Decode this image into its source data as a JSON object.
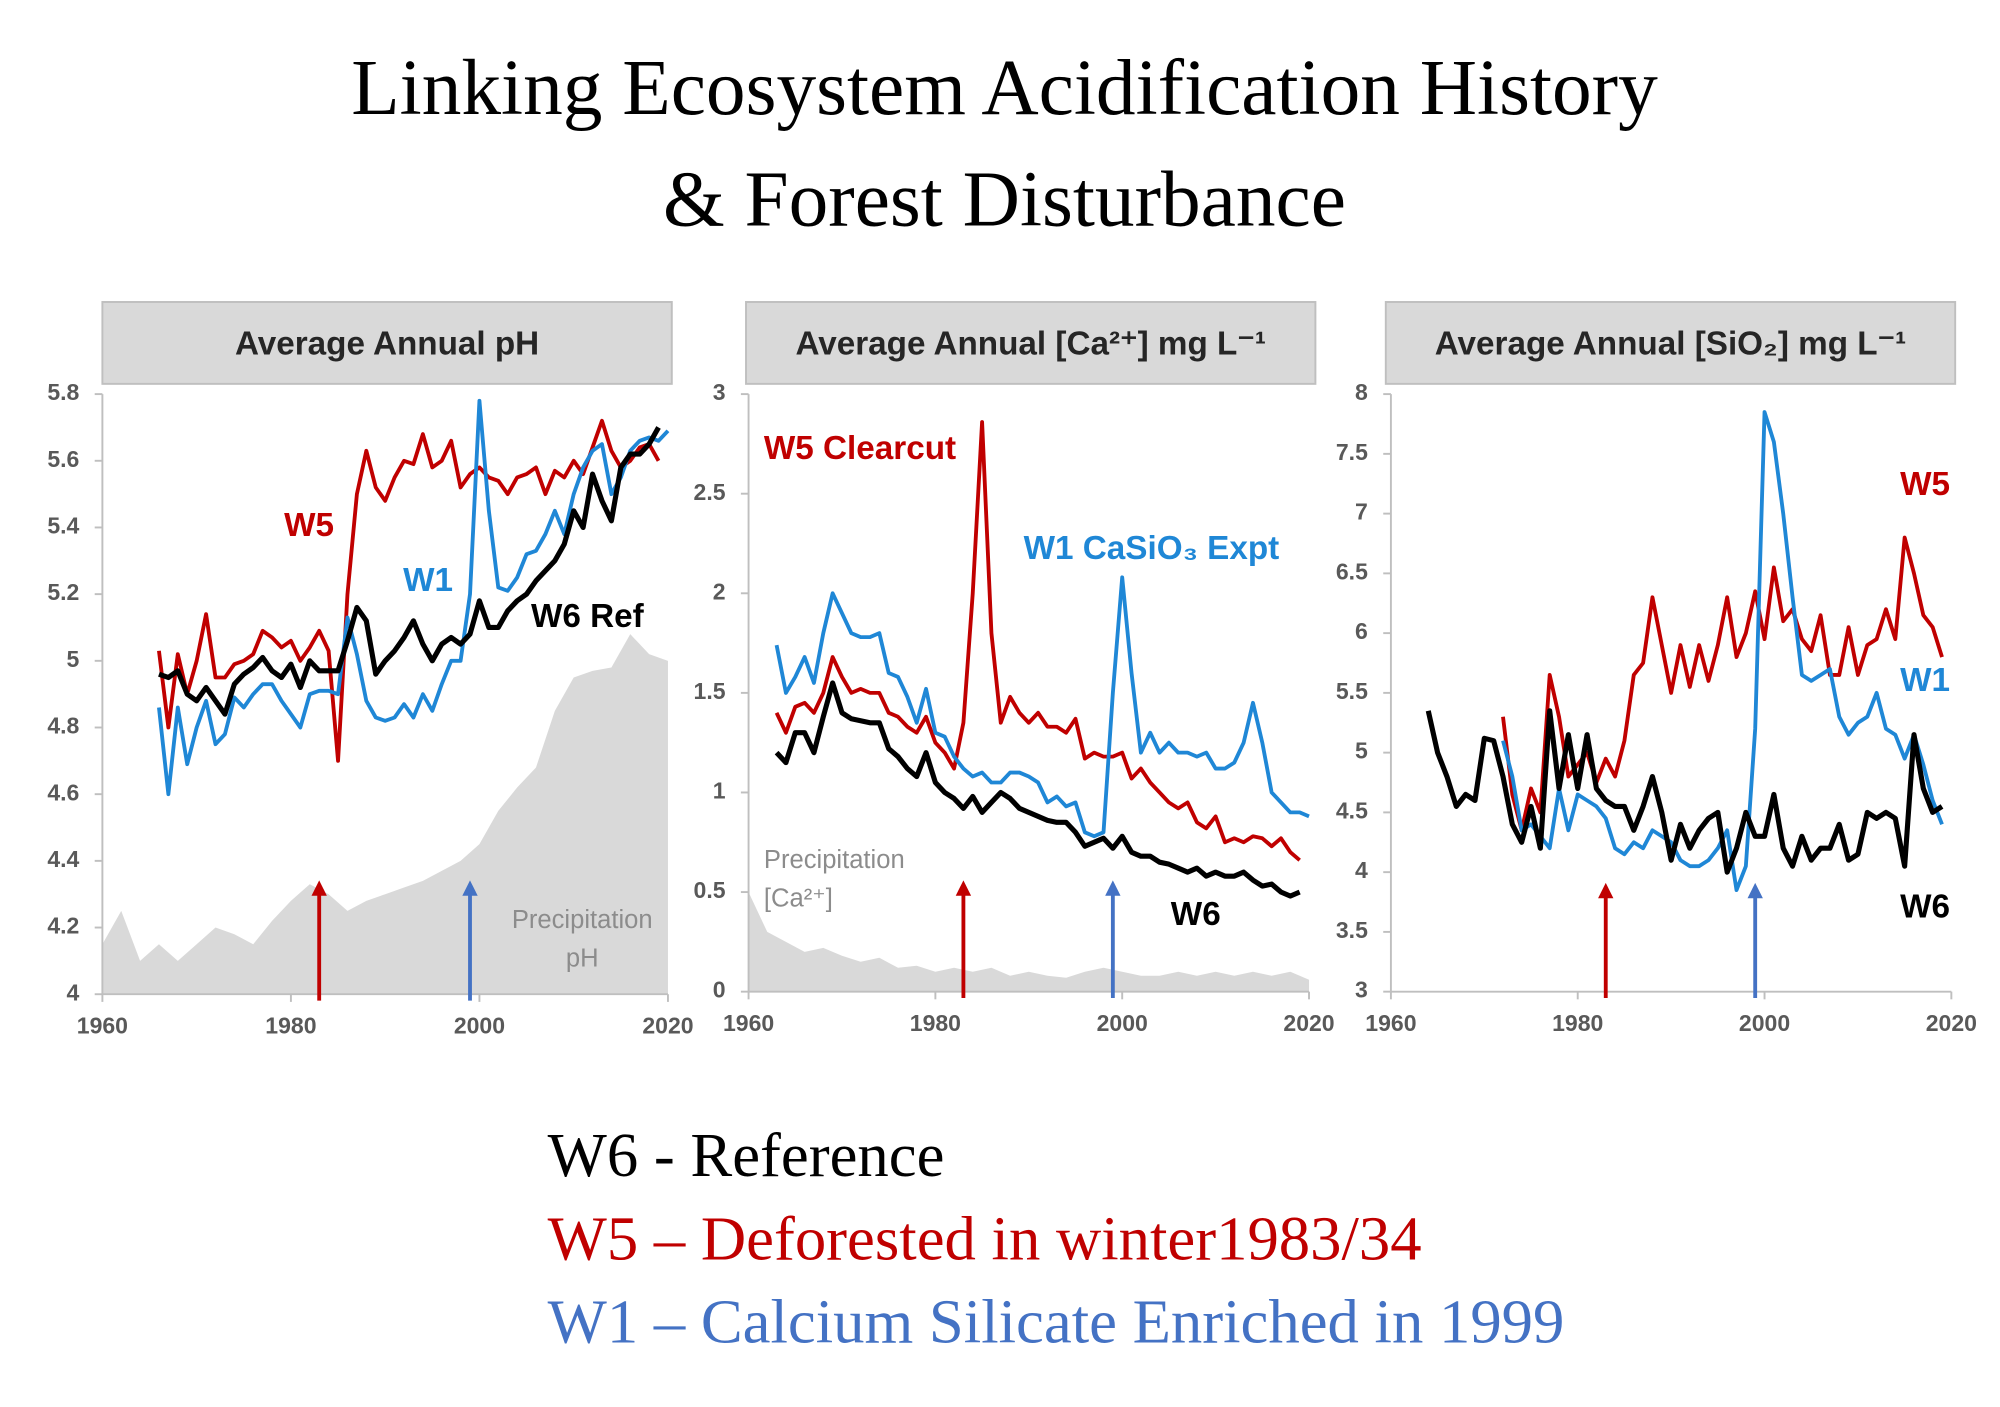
{
  "title": [
    "Linking Ecosystem Acidification History",
    "& Forest Disturbance"
  ],
  "notes": [
    {
      "text": "W6 - Reference",
      "color": "#000000"
    },
    {
      "text": "W5 – Deforested in winter1983/34",
      "color": "#c00000"
    },
    {
      "text": "W1 – Calcium Silicate Enriched in 1999",
      "color": "#4472c4"
    }
  ],
  "chart_data": [
    {
      "type": "line",
      "title": "Average Annual pH",
      "xlim": [
        1960,
        2020
      ],
      "xticks": [
        1960,
        1980,
        2000,
        2020
      ],
      "ylim": [
        4,
        5.8
      ],
      "yticks": [
        4,
        4.2,
        4.4,
        4.6,
        4.8,
        5,
        5.2,
        5.4,
        5.6,
        5.8
      ],
      "x": [
        1966,
        1967,
        1968,
        1969,
        1970,
        1971,
        1972,
        1973,
        1974,
        1975,
        1976,
        1977,
        1978,
        1979,
        1980,
        1981,
        1982,
        1983,
        1984,
        1985,
        1986,
        1987,
        1988,
        1989,
        1990,
        1991,
        1992,
        1993,
        1994,
        1995,
        1996,
        1997,
        1998,
        1999,
        2000,
        2001,
        2002,
        2003,
        2004,
        2005,
        2006,
        2007,
        2008,
        2009,
        2010,
        2011,
        2012,
        2013,
        2014,
        2015,
        2016,
        2017,
        2018,
        2019,
        2020
      ],
      "series": [
        {
          "name": "W5",
          "color": "#c00000",
          "values": [
            5.03,
            4.8,
            5.02,
            4.9,
            5.0,
            5.14,
            4.95,
            4.95,
            4.99,
            5.0,
            5.02,
            5.09,
            5.07,
            5.04,
            5.06,
            5.0,
            5.04,
            5.09,
            5.03,
            4.7,
            5.2,
            5.5,
            5.63,
            5.52,
            5.48,
            5.55,
            5.6,
            5.59,
            5.68,
            5.58,
            5.6,
            5.66,
            5.52,
            5.56,
            5.58,
            5.55,
            5.54,
            5.5,
            5.55,
            5.56,
            5.58,
            5.5,
            5.57,
            5.55,
            5.6,
            5.56,
            5.64,
            5.72,
            5.63,
            5.58,
            5.6,
            5.64,
            5.65,
            5.6,
            null
          ]
        },
        {
          "name": "W1",
          "color": "#1f87d6",
          "values": [
            4.86,
            4.6,
            4.86,
            4.69,
            4.8,
            4.88,
            4.75,
            4.78,
            4.89,
            4.86,
            4.9,
            4.93,
            4.93,
            4.88,
            4.84,
            4.8,
            4.9,
            4.91,
            4.91,
            4.9,
            5.13,
            5.02,
            4.88,
            4.83,
            4.82,
            4.83,
            4.87,
            4.83,
            4.9,
            4.85,
            4.93,
            5.0,
            5.0,
            5.2,
            5.78,
            5.45,
            5.22,
            5.21,
            5.25,
            5.32,
            5.33,
            5.38,
            5.45,
            5.38,
            5.5,
            5.58,
            5.63,
            5.65,
            5.5,
            5.55,
            5.63,
            5.66,
            5.67,
            5.66,
            5.69
          ]
        },
        {
          "name": "W6 Ref",
          "color": "#000000",
          "values": [
            4.96,
            4.95,
            4.97,
            4.9,
            4.88,
            4.92,
            4.88,
            4.84,
            4.93,
            4.96,
            4.98,
            5.01,
            4.97,
            4.95,
            4.99,
            4.92,
            5.0,
            4.97,
            4.97,
            4.97,
            5.06,
            5.16,
            5.12,
            4.96,
            5.0,
            5.03,
            5.07,
            5.12,
            5.05,
            5.0,
            5.05,
            5.07,
            5.05,
            5.08,
            5.18,
            5.1,
            5.1,
            5.15,
            5.18,
            5.2,
            5.24,
            5.27,
            5.3,
            5.35,
            5.45,
            5.4,
            5.56,
            5.48,
            5.42,
            5.58,
            5.62,
            5.62,
            5.65,
            5.7,
            null
          ]
        }
      ],
      "precipitation": {
        "name": [
          "Precipitation",
          "pH"
        ],
        "color": "#d9d9d9",
        "x": [
          1960,
          1962,
          1964,
          1966,
          1968,
          1970,
          1972,
          1974,
          1976,
          1978,
          1980,
          1982,
          1984,
          1986,
          1988,
          1990,
          1992,
          1994,
          1996,
          1998,
          2000,
          2002,
          2004,
          2006,
          2008,
          2010,
          2012,
          2014,
          2016,
          2018,
          2020
        ],
        "values": [
          4.15,
          4.25,
          4.1,
          4.15,
          4.1,
          4.15,
          4.2,
          4.18,
          4.15,
          4.22,
          4.28,
          4.33,
          4.3,
          4.25,
          4.28,
          4.3,
          4.32,
          4.34,
          4.37,
          4.4,
          4.45,
          4.55,
          4.62,
          4.68,
          4.85,
          4.95,
          4.97,
          4.98,
          5.08,
          5.02,
          5.0
        ]
      },
      "arrows": [
        {
          "x": 1983,
          "color": "#c00000"
        },
        {
          "x": 1999,
          "color": "#4472c4"
        }
      ]
    },
    {
      "type": "line",
      "title": "Average Annual [Ca²⁺] mg L⁻¹",
      "xlim": [
        1960,
        2020
      ],
      "xticks": [
        1960,
        1980,
        2000,
        2020
      ],
      "ylim": [
        0,
        3
      ],
      "yticks": [
        0,
        0.5,
        1,
        1.5,
        2,
        2.5,
        3
      ],
      "x": [
        1963,
        1964,
        1965,
        1966,
        1967,
        1968,
        1969,
        1970,
        1971,
        1972,
        1973,
        1974,
        1975,
        1976,
        1977,
        1978,
        1979,
        1980,
        1981,
        1982,
        1983,
        1984,
        1985,
        1986,
        1987,
        1988,
        1989,
        1990,
        1991,
        1992,
        1993,
        1994,
        1995,
        1996,
        1997,
        1998,
        1999,
        2000,
        2001,
        2002,
        2003,
        2004,
        2005,
        2006,
        2007,
        2008,
        2009,
        2010,
        2011,
        2012,
        2013,
        2014,
        2015,
        2016,
        2017,
        2018,
        2019,
        2020
      ],
      "series": [
        {
          "name": "W5 Clearcut",
          "color": "#c00000",
          "values": [
            1.4,
            1.3,
            1.43,
            1.45,
            1.4,
            1.5,
            1.68,
            1.58,
            1.5,
            1.52,
            1.5,
            1.5,
            1.4,
            1.38,
            1.33,
            1.3,
            1.38,
            1.25,
            1.2,
            1.12,
            1.35,
            2.0,
            2.86,
            1.8,
            1.35,
            1.48,
            1.4,
            1.35,
            1.4,
            1.33,
            1.33,
            1.3,
            1.37,
            1.17,
            1.2,
            1.18,
            1.18,
            1.2,
            1.07,
            1.12,
            1.05,
            1.0,
            0.95,
            0.92,
            0.95,
            0.85,
            0.82,
            0.88,
            0.75,
            0.77,
            0.75,
            0.78,
            0.77,
            0.73,
            0.77,
            0.7,
            0.66,
            null
          ]
        },
        {
          "name": "W1 CaSiO₃ Expt",
          "color": "#1f87d6",
          "values": [
            1.74,
            1.5,
            1.58,
            1.68,
            1.55,
            1.8,
            2.0,
            1.9,
            1.8,
            1.78,
            1.78,
            1.8,
            1.6,
            1.58,
            1.48,
            1.35,
            1.52,
            1.3,
            1.28,
            1.18,
            1.12,
            1.08,
            1.1,
            1.05,
            1.05,
            1.1,
            1.1,
            1.08,
            1.05,
            0.95,
            0.98,
            0.93,
            0.95,
            0.8,
            0.78,
            0.8,
            1.5,
            2.08,
            1.6,
            1.2,
            1.3,
            1.2,
            1.25,
            1.2,
            1.2,
            1.18,
            1.2,
            1.12,
            1.12,
            1.15,
            1.25,
            1.45,
            1.25,
            1.0,
            0.95,
            0.9,
            0.9,
            0.88
          ]
        },
        {
          "name": "W6",
          "color": "#000000",
          "values": [
            1.2,
            1.15,
            1.3,
            1.3,
            1.2,
            1.38,
            1.55,
            1.4,
            1.37,
            1.36,
            1.35,
            1.35,
            1.22,
            1.18,
            1.12,
            1.08,
            1.2,
            1.05,
            1.0,
            0.97,
            0.92,
            0.98,
            0.9,
            0.95,
            1.0,
            0.97,
            0.92,
            0.9,
            0.88,
            0.86,
            0.85,
            0.85,
            0.8,
            0.73,
            0.75,
            0.77,
            0.72,
            0.78,
            0.7,
            0.68,
            0.68,
            0.65,
            0.64,
            0.62,
            0.6,
            0.62,
            0.58,
            0.6,
            0.58,
            0.58,
            0.6,
            0.56,
            0.53,
            0.54,
            0.5,
            0.48,
            0.5,
            null
          ]
        }
      ],
      "precipitation": {
        "name": [
          "Precipitation",
          "[Ca²⁺]"
        ],
        "color": "#d9d9d9",
        "x": [
          1960,
          1962,
          1964,
          1966,
          1968,
          1970,
          1972,
          1974,
          1976,
          1978,
          1980,
          1982,
          1984,
          1986,
          1988,
          1990,
          1992,
          1994,
          1996,
          1998,
          2000,
          2002,
          2004,
          2006,
          2008,
          2010,
          2012,
          2014,
          2016,
          2018,
          2020
        ],
        "values": [
          0.5,
          0.3,
          0.25,
          0.2,
          0.22,
          0.18,
          0.15,
          0.17,
          0.12,
          0.13,
          0.1,
          0.12,
          0.1,
          0.12,
          0.08,
          0.1,
          0.08,
          0.07,
          0.1,
          0.12,
          0.1,
          0.08,
          0.08,
          0.1,
          0.08,
          0.1,
          0.08,
          0.1,
          0.08,
          0.1,
          0.06
        ]
      },
      "arrows": [
        {
          "x": 1983,
          "color": "#c00000"
        },
        {
          "x": 1999,
          "color": "#4472c4"
        }
      ]
    },
    {
      "type": "line",
      "title": "Average Annual [SiO₂] mg L⁻¹",
      "xlim": [
        1960,
        2020
      ],
      "xticks": [
        1960,
        1980,
        2000,
        2020
      ],
      "ylim": [
        3,
        8
      ],
      "yticks": [
        3,
        3.5,
        4,
        4.5,
        5,
        5.5,
        6,
        6.5,
        7,
        7.5,
        8
      ],
      "x": [
        1964,
        1965,
        1966,
        1967,
        1968,
        1969,
        1970,
        1971,
        1972,
        1973,
        1974,
        1975,
        1976,
        1977,
        1978,
        1979,
        1980,
        1981,
        1982,
        1983,
        1984,
        1985,
        1986,
        1987,
        1988,
        1989,
        1990,
        1991,
        1992,
        1993,
        1994,
        1995,
        1996,
        1997,
        1998,
        1999,
        2000,
        2001,
        2002,
        2003,
        2004,
        2005,
        2006,
        2007,
        2008,
        2009,
        2010,
        2011,
        2012,
        2013,
        2014,
        2015,
        2016,
        2017,
        2018,
        2019,
        2020
      ],
      "series": [
        {
          "name": "W5",
          "color": "#c00000",
          "values": [
            null,
            null,
            null,
            null,
            null,
            null,
            null,
            null,
            5.3,
            4.65,
            4.35,
            4.7,
            4.5,
            5.65,
            5.3,
            4.8,
            4.9,
            5.0,
            4.75,
            4.95,
            4.8,
            5.1,
            5.65,
            5.75,
            6.3,
            5.9,
            5.5,
            5.9,
            5.55,
            5.9,
            5.6,
            5.9,
            6.3,
            5.8,
            6.0,
            6.35,
            5.95,
            6.55,
            6.1,
            6.2,
            5.95,
            5.85,
            6.15,
            5.65,
            5.65,
            6.05,
            5.65,
            5.9,
            5.95,
            6.2,
            5.95,
            6.8,
            6.5,
            6.15,
            6.05,
            5.8,
            null
          ]
        },
        {
          "name": "W1",
          "color": "#1f87d6",
          "values": [
            null,
            null,
            null,
            null,
            null,
            null,
            null,
            null,
            5.1,
            4.8,
            4.35,
            4.4,
            4.3,
            4.2,
            4.7,
            4.35,
            4.65,
            4.6,
            4.55,
            4.45,
            4.2,
            4.15,
            4.25,
            4.2,
            4.35,
            4.3,
            4.25,
            4.1,
            4.05,
            4.05,
            4.1,
            4.2,
            4.35,
            3.85,
            4.05,
            5.2,
            7.85,
            7.6,
            7.0,
            6.3,
            5.65,
            5.6,
            5.65,
            5.7,
            5.3,
            5.15,
            5.25,
            5.3,
            5.5,
            5.2,
            5.15,
            4.95,
            5.15,
            4.9,
            4.6,
            4.4,
            null
          ]
        },
        {
          "name": "W6",
          "color": "#000000",
          "values": [
            5.35,
            5.0,
            4.8,
            4.55,
            4.65,
            4.6,
            5.12,
            5.1,
            4.8,
            4.4,
            4.25,
            4.55,
            4.2,
            5.35,
            4.7,
            5.15,
            4.7,
            5.15,
            4.7,
            4.6,
            4.55,
            4.55,
            4.35,
            4.55,
            4.8,
            4.5,
            4.1,
            4.4,
            4.2,
            4.35,
            4.45,
            4.5,
            4.0,
            4.2,
            4.5,
            4.3,
            4.3,
            4.65,
            4.2,
            4.05,
            4.3,
            4.1,
            4.2,
            4.2,
            4.4,
            4.1,
            4.15,
            4.5,
            4.45,
            4.5,
            4.45,
            4.05,
            5.15,
            4.7,
            4.5,
            4.55,
            null
          ]
        }
      ],
      "arrows": [
        {
          "x": 1983,
          "color": "#c00000"
        },
        {
          "x": 1999,
          "color": "#4472c4"
        }
      ]
    }
  ]
}
